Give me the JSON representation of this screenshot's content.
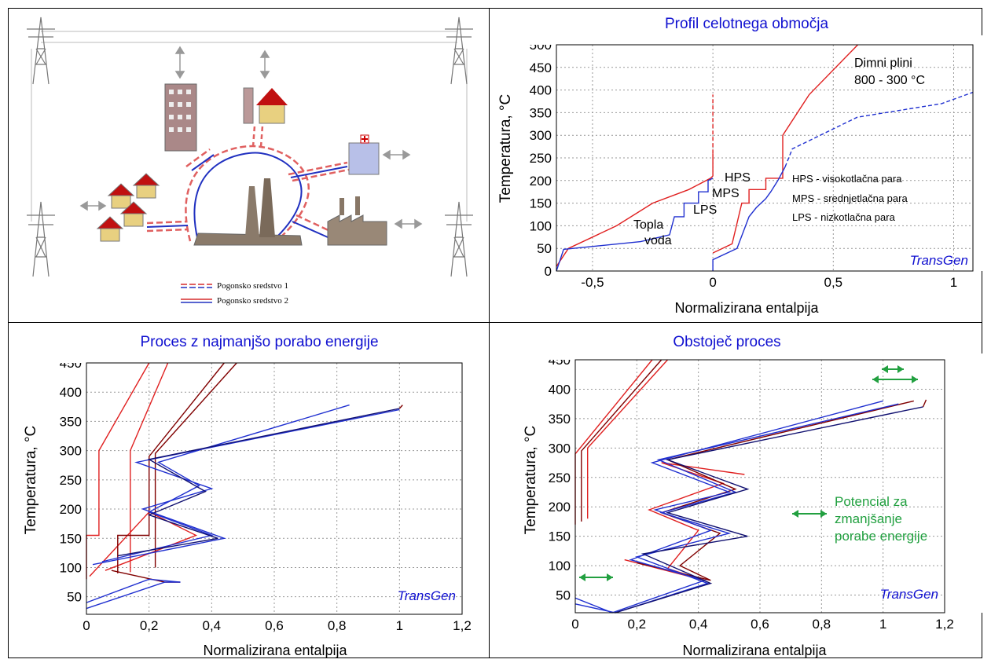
{
  "diagram": {
    "legend": [
      {
        "label": "Pogonsko sredstvo 1",
        "style": "dashed"
      },
      {
        "label": "Pogonsko sredstvo 2",
        "style": "solid"
      }
    ]
  },
  "colors": {
    "red": "#e02020",
    "blue": "#2030d0",
    "darkred": "#800000",
    "darkblue": "#101070",
    "green": "#22a040"
  },
  "chart_data": [
    {
      "type": "line",
      "title": "Profil celotnega območja",
      "xlabel": "Normalizirana entalpija",
      "ylabel": "Temperatura, °C",
      "xlim": [
        -0.65,
        1.08
      ],
      "ylim": [
        0,
        500
      ],
      "x_ticks": [
        "-0,5",
        "0",
        "0,5",
        "1"
      ],
      "y_ticks": [
        "0",
        "50",
        "100",
        "150",
        "200",
        "250",
        "300",
        "350",
        "400",
        "450",
        "500"
      ],
      "annotations": [
        "Dimni plini",
        "800 - 300 °C",
        "HPS",
        "MPS",
        "LPS",
        "Topla",
        "voda",
        "HPS - visokotlačna para",
        "MPS - srednjetlačna para",
        "LPS - nizkotlačna para",
        "TransGen"
      ],
      "series": [
        {
          "color": "red",
          "dash": false,
          "points": [
            [
              -0.65,
              10
            ],
            [
              -0.6,
              50
            ],
            [
              -0.4,
              100
            ],
            [
              -0.25,
              150
            ],
            [
              -0.1,
              180
            ],
            [
              -0.01,
              205
            ],
            [
              0.0,
              210
            ],
            [
              0.0,
              260
            ]
          ]
        },
        {
          "color": "red",
          "dash": true,
          "points": [
            [
              0.0,
              260
            ],
            [
              0.0,
              390
            ]
          ]
        },
        {
          "color": "blue",
          "dash": false,
          "points": [
            [
              -0.65,
              0
            ],
            [
              -0.62,
              48
            ],
            [
              -0.3,
              65
            ],
            [
              -0.18,
              80
            ],
            [
              -0.16,
              120
            ],
            [
              -0.12,
              120
            ],
            [
              -0.12,
              150
            ],
            [
              -0.06,
              150
            ],
            [
              -0.06,
              175
            ],
            [
              -0.02,
              175
            ],
            [
              -0.02,
              200
            ],
            [
              0.0,
              205
            ]
          ]
        },
        {
          "color": "red",
          "dash": false,
          "points": [
            [
              0.0,
              40
            ],
            [
              0.08,
              60
            ],
            [
              0.12,
              150
            ],
            [
              0.15,
              150
            ],
            [
              0.15,
              180
            ],
            [
              0.22,
              180
            ],
            [
              0.22,
              205
            ],
            [
              0.29,
              205
            ],
            [
              0.29,
              300
            ],
            [
              0.4,
              390
            ],
            [
              0.62,
              510
            ]
          ]
        },
        {
          "color": "blue",
          "dash": false,
          "points": [
            [
              0.0,
              0
            ],
            [
              0.0,
              25
            ],
            [
              0.1,
              50
            ],
            [
              0.15,
              120
            ],
            [
              0.18,
              140
            ],
            [
              0.22,
              160
            ],
            [
              0.24,
              175
            ],
            [
              0.27,
              200
            ],
            [
              0.3,
              230
            ]
          ]
        },
        {
          "color": "blue",
          "dash": true,
          "points": [
            [
              0.3,
              230
            ],
            [
              0.33,
              270
            ],
            [
              0.6,
              340
            ],
            [
              0.95,
              370
            ],
            [
              1.08,
              395
            ]
          ]
        }
      ]
    },
    {
      "type": "line",
      "title": "Proces z najmanjšo porabo energije",
      "xlabel": "Normalizirana entalpija",
      "ylabel": "Temperatura, °C",
      "xlim": [
        0,
        1.2
      ],
      "ylim": [
        20,
        450
      ],
      "x_ticks": [
        "0",
        "0,2",
        "0,4",
        "0,6",
        "0,8",
        "1",
        "1,2"
      ],
      "y_ticks": [
        "50",
        "100",
        "150",
        "200",
        "250",
        "300",
        "350",
        "400",
        "450"
      ],
      "annotations": [
        "TransGen"
      ],
      "series": [
        {
          "color": "red",
          "points": [
            [
              0,
              80
            ],
            [
              0,
              155
            ],
            [
              0.04,
              155
            ],
            [
              0.04,
              300
            ],
            [
              0.2,
              450
            ]
          ]
        },
        {
          "color": "red",
          "points": [
            [
              0.01,
              85
            ],
            [
              0.2,
              195
            ],
            [
              0.35,
              155
            ],
            [
              0.06,
              95
            ]
          ]
        },
        {
          "color": "red",
          "points": [
            [
              0.14,
              92
            ],
            [
              0.14,
              300
            ],
            [
              0.26,
              450
            ]
          ]
        },
        {
          "color": "darkred",
          "points": [
            [
              0.1,
              90
            ],
            [
              0.1,
              155
            ],
            [
              0.2,
              155
            ],
            [
              0.2,
              290
            ],
            [
              0.44,
              450
            ]
          ]
        },
        {
          "color": "darkred",
          "points": [
            [
              0.22,
              100
            ],
            [
              0.22,
              295
            ],
            [
              0.48,
              450
            ]
          ]
        },
        {
          "color": "darkred",
          "points": [
            [
              0.08,
              95
            ],
            [
              0.25,
              75
            ],
            [
              0.3,
              75
            ]
          ]
        },
        {
          "color": "blue",
          "points": [
            [
              0,
              30
            ],
            [
              0.25,
              75
            ],
            [
              0.3,
              75
            ]
          ]
        },
        {
          "color": "blue",
          "points": [
            [
              0,
              40
            ],
            [
              0.2,
              80
            ],
            [
              0.3,
              75
            ]
          ]
        },
        {
          "color": "blue",
          "points": [
            [
              0.02,
              105
            ],
            [
              0.44,
              150
            ],
            [
              0.18,
              200
            ],
            [
              0.4,
              235
            ],
            [
              0.16,
              280
            ],
            [
              1.0,
              370
            ]
          ]
        },
        {
          "color": "blue",
          "points": [
            [
              0.05,
              110
            ],
            [
              0.4,
              155
            ],
            [
              0.2,
              195
            ],
            [
              0.36,
              240
            ],
            [
              0.23,
              280
            ],
            [
              0.84,
              378
            ]
          ]
        },
        {
          "color": "darkblue",
          "points": [
            [
              0.1,
              120
            ],
            [
              0.42,
              150
            ],
            [
              0.2,
              190
            ],
            [
              0.38,
              230
            ],
            [
              0.2,
              285
            ],
            [
              1.0,
              372
            ]
          ]
        },
        {
          "color": "darkred",
          "points": [
            [
              1.0,
              372
            ],
            [
              1.01,
              378
            ]
          ]
        }
      ]
    },
    {
      "type": "line",
      "title": "Obstoječ proces",
      "xlabel": "Normalizirana entalpija",
      "ylabel": "Temperatura, °C",
      "xlim": [
        0,
        1.2
      ],
      "ylim": [
        20,
        450
      ],
      "x_ticks": [
        "0",
        "0,2",
        "0,4",
        "0,6",
        "0,8",
        "1",
        "1,2"
      ],
      "y_ticks": [
        "50",
        "100",
        "150",
        "200",
        "250",
        "300",
        "350",
        "400",
        "450"
      ],
      "annotations": [
        "Potencial za",
        "zmanjšanje",
        "porabe energije",
        "TransGen"
      ],
      "series": [
        {
          "color": "red",
          "points": [
            [
              0,
              170
            ],
            [
              0,
              290
            ],
            [
              0.25,
              450
            ]
          ]
        },
        {
          "color": "darkred",
          "points": [
            [
              0.02,
              175
            ],
            [
              0.02,
              295
            ],
            [
              0.28,
              450
            ]
          ]
        },
        {
          "color": "red",
          "points": [
            [
              0.04,
              180
            ],
            [
              0.04,
              300
            ],
            [
              0.3,
              450
            ]
          ]
        },
        {
          "color": "red",
          "points": [
            [
              0.16,
              110
            ],
            [
              0.42,
              75
            ],
            [
              0.3,
              95
            ],
            [
              0.4,
              160
            ],
            [
              0.24,
              195
            ],
            [
              0.48,
              240
            ],
            [
              0.28,
              275
            ],
            [
              0.55,
              255
            ]
          ]
        },
        {
          "color": "darkred",
          "points": [
            [
              0.2,
              105
            ],
            [
              0.44,
              75
            ],
            [
              0.34,
              100
            ],
            [
              0.47,
              155
            ],
            [
              0.28,
              190
            ],
            [
              0.52,
              230
            ],
            [
              0.3,
              280
            ],
            [
              1.1,
              380
            ]
          ]
        },
        {
          "color": "blue",
          "points": [
            [
              0,
              45
            ],
            [
              0.12,
              15
            ],
            [
              0.42,
              75
            ],
            [
              0.18,
              110
            ],
            [
              0.44,
              160
            ],
            [
              0.26,
              195
            ],
            [
              0.5,
              225
            ],
            [
              0.25,
              275
            ],
            [
              1.0,
              380
            ]
          ]
        },
        {
          "color": "blue",
          "points": [
            [
              0,
              35
            ],
            [
              0.13,
              15
            ],
            [
              0.43,
              70
            ],
            [
              0.2,
              115
            ],
            [
              0.5,
              155
            ],
            [
              0.28,
              190
            ],
            [
              0.52,
              225
            ],
            [
              0.27,
              280
            ],
            [
              1.05,
              375
            ]
          ]
        },
        {
          "color": "darkblue",
          "points": [
            [
              0.13,
              10
            ],
            [
              0.44,
              70
            ],
            [
              0.22,
              120
            ],
            [
              0.56,
              150
            ],
            [
              0.3,
              190
            ],
            [
              0.56,
              230
            ],
            [
              0.3,
              280
            ],
            [
              1.13,
              370
            ]
          ]
        },
        {
          "color": "darkred",
          "points": [
            [
              1.13,
              370
            ],
            [
              1.14,
              382
            ]
          ]
        }
      ]
    }
  ]
}
